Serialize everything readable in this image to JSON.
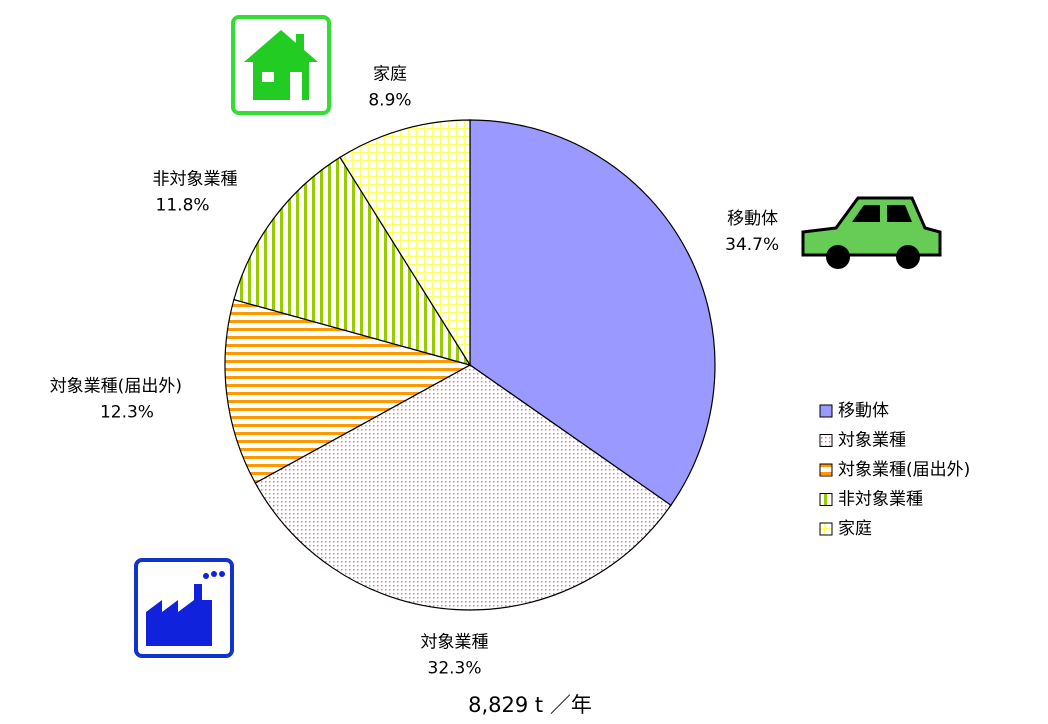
{
  "chart_data": {
    "type": "pie",
    "categories": [
      "移動体",
      "対象業種",
      "対象業種(届出外)",
      "非対象業種",
      "家庭"
    ],
    "values": [
      34.7,
      32.3,
      12.3,
      11.8,
      8.9
    ],
    "value_labels": [
      "34.7%",
      "32.3%",
      "12.3%",
      "11.8%",
      "8.9%"
    ],
    "colors": [
      "#9999ff",
      "#cc8899",
      "#ff9900",
      "#99cc00",
      "#ffff66"
    ],
    "annotation": "8,829 t ／年",
    "legend": "right"
  }
}
